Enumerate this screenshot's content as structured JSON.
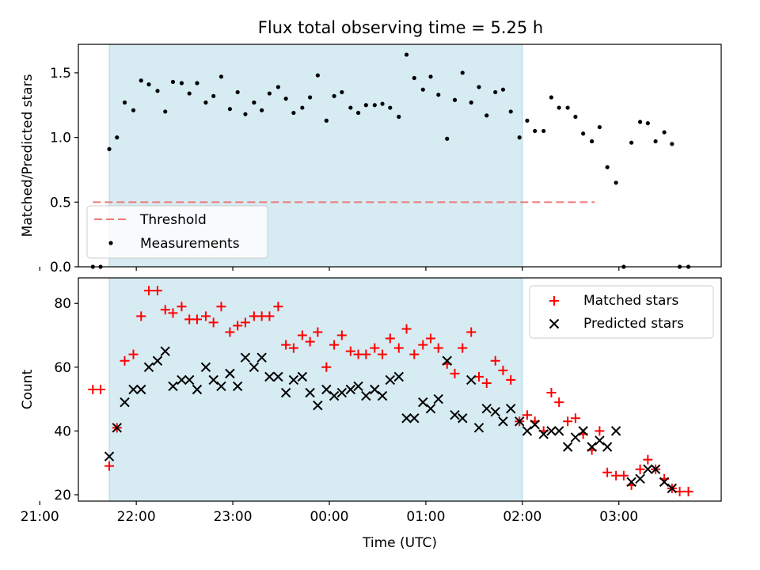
{
  "title": "Flux total observing time = 5.25 h",
  "chart_data": [
    {
      "type": "scatter",
      "ylabel": "Matched/Predicted stars",
      "ylim": [
        0,
        1.72
      ],
      "yticks": [
        "0.0",
        "0.5",
        "1.0",
        "1.5"
      ],
      "xlim": [
        -2.6,
        4.06
      ],
      "shaded_interval": [
        -2.28,
        2.0
      ],
      "legend": {
        "position": "lower-left",
        "entries": [
          "Threshold",
          "Measurements"
        ]
      },
      "threshold": {
        "name": "Threshold",
        "value": 0.5,
        "x": [
          -2.45,
          2.75
        ],
        "color": "#f07878"
      },
      "series": [
        {
          "name": "Measurements",
          "marker": "dot",
          "color": "#000000",
          "points": [
            [
              -2.45,
              0.0
            ],
            [
              -2.37,
              0.0
            ],
            [
              -2.28,
              0.91
            ],
            [
              -2.2,
              1.0
            ],
            [
              -2.12,
              1.27
            ],
            [
              -2.03,
              1.21
            ],
            [
              -1.95,
              1.44
            ],
            [
              -1.87,
              1.41
            ],
            [
              -1.78,
              1.36
            ],
            [
              -1.7,
              1.2
            ],
            [
              -1.62,
              1.43
            ],
            [
              -1.53,
              1.42
            ],
            [
              -1.45,
              1.34
            ],
            [
              -1.37,
              1.42
            ],
            [
              -1.28,
              1.27
            ],
            [
              -1.2,
              1.32
            ],
            [
              -1.12,
              1.47
            ],
            [
              -1.03,
              1.22
            ],
            [
              -0.95,
              1.35
            ],
            [
              -0.87,
              1.18
            ],
            [
              -0.78,
              1.27
            ],
            [
              -0.7,
              1.21
            ],
            [
              -0.62,
              1.34
            ],
            [
              -0.53,
              1.39
            ],
            [
              -0.45,
              1.3
            ],
            [
              -0.37,
              1.19
            ],
            [
              -0.28,
              1.23
            ],
            [
              -0.2,
              1.31
            ],
            [
              -0.12,
              1.48
            ],
            [
              -0.03,
              1.13
            ],
            [
              0.05,
              1.32
            ],
            [
              0.13,
              1.35
            ],
            [
              0.22,
              1.23
            ],
            [
              0.3,
              1.19
            ],
            [
              0.38,
              1.25
            ],
            [
              0.47,
              1.25
            ],
            [
              0.55,
              1.26
            ],
            [
              0.63,
              1.23
            ],
            [
              0.72,
              1.16
            ],
            [
              0.8,
              1.64
            ],
            [
              0.88,
              1.46
            ],
            [
              0.97,
              1.37
            ],
            [
              1.05,
              1.47
            ],
            [
              1.13,
              1.33
            ],
            [
              1.22,
              0.99
            ],
            [
              1.3,
              1.29
            ],
            [
              1.38,
              1.5
            ],
            [
              1.47,
              1.27
            ],
            [
              1.55,
              1.39
            ],
            [
              1.63,
              1.17
            ],
            [
              1.72,
              1.35
            ],
            [
              1.8,
              1.37
            ],
            [
              1.88,
              1.2
            ],
            [
              1.97,
              1.0
            ],
            [
              2.05,
              1.13
            ],
            [
              2.13,
              1.05
            ],
            [
              2.22,
              1.05
            ],
            [
              2.3,
              1.31
            ],
            [
              2.38,
              1.23
            ],
            [
              2.47,
              1.23
            ],
            [
              2.55,
              1.16
            ],
            [
              2.63,
              1.03
            ],
            [
              2.72,
              0.97
            ],
            [
              2.8,
              1.08
            ],
            [
              2.88,
              0.77
            ],
            [
              2.97,
              0.65
            ],
            [
              3.05,
              0.0
            ],
            [
              3.13,
              0.96
            ],
            [
              3.22,
              1.12
            ],
            [
              3.3,
              1.11
            ],
            [
              3.38,
              0.97
            ],
            [
              3.47,
              1.04
            ],
            [
              3.55,
              0.95
            ],
            [
              3.63,
              0.0
            ],
            [
              3.72,
              0.0
            ]
          ]
        }
      ]
    },
    {
      "type": "scatter",
      "ylabel": "Count",
      "xlabel": "Time (UTC)",
      "ylim": [
        18,
        88
      ],
      "yticks": [
        "20",
        "40",
        "60",
        "80"
      ],
      "xlim": [
        -2.6,
        4.06
      ],
      "xticks": [
        "21:00",
        "22:00",
        "23:00",
        "00:00",
        "01:00",
        "02:00",
        "03:00"
      ],
      "shaded_interval": [
        -2.28,
        2.0
      ],
      "legend": {
        "position": "top-right",
        "entries": [
          "Matched stars",
          "Predicted stars"
        ]
      },
      "series": [
        {
          "name": "Matched stars",
          "marker": "plus",
          "color": "#ff0000",
          "points": [
            [
              -2.45,
              53
            ],
            [
              -2.37,
              53
            ],
            [
              -2.28,
              29
            ],
            [
              -2.2,
              41
            ],
            [
              -2.12,
              62
            ],
            [
              -2.03,
              64
            ],
            [
              -1.95,
              76
            ],
            [
              -1.87,
              84
            ],
            [
              -1.78,
              84
            ],
            [
              -1.7,
              78
            ],
            [
              -1.62,
              77
            ],
            [
              -1.53,
              79
            ],
            [
              -1.45,
              75
            ],
            [
              -1.37,
              75
            ],
            [
              -1.28,
              76
            ],
            [
              -1.2,
              74
            ],
            [
              -1.12,
              79
            ],
            [
              -1.03,
              71
            ],
            [
              -0.95,
              73
            ],
            [
              -0.87,
              74
            ],
            [
              -0.78,
              76
            ],
            [
              -0.7,
              76
            ],
            [
              -0.62,
              76
            ],
            [
              -0.53,
              79
            ],
            [
              -0.45,
              67
            ],
            [
              -0.37,
              66
            ],
            [
              -0.28,
              70
            ],
            [
              -0.2,
              68
            ],
            [
              -0.12,
              71
            ],
            [
              -0.03,
              60
            ],
            [
              0.05,
              67
            ],
            [
              0.13,
              70
            ],
            [
              0.22,
              65
            ],
            [
              0.3,
              64
            ],
            [
              0.38,
              64
            ],
            [
              0.47,
              66
            ],
            [
              0.55,
              64
            ],
            [
              0.63,
              69
            ],
            [
              0.72,
              66
            ],
            [
              0.8,
              72
            ],
            [
              0.88,
              64
            ],
            [
              0.97,
              67
            ],
            [
              1.05,
              69
            ],
            [
              1.13,
              66
            ],
            [
              1.22,
              61
            ],
            [
              1.3,
              58
            ],
            [
              1.38,
              66
            ],
            [
              1.47,
              71
            ],
            [
              1.55,
              57
            ],
            [
              1.63,
              55
            ],
            [
              1.72,
              62
            ],
            [
              1.8,
              59
            ],
            [
              1.88,
              56
            ],
            [
              1.97,
              43
            ],
            [
              2.05,
              45
            ],
            [
              2.13,
              43
            ],
            [
              2.22,
              40
            ],
            [
              2.3,
              52
            ],
            [
              2.38,
              49
            ],
            [
              2.47,
              43
            ],
            [
              2.55,
              44
            ],
            [
              2.63,
              39
            ],
            [
              2.72,
              34
            ],
            [
              2.8,
              40
            ],
            [
              2.88,
              27
            ],
            [
              2.97,
              26
            ],
            [
              3.05,
              26
            ],
            [
              3.13,
              23
            ],
            [
              3.22,
              28
            ],
            [
              3.3,
              31
            ],
            [
              3.38,
              28
            ],
            [
              3.47,
              25
            ],
            [
              3.55,
              22
            ],
            [
              3.63,
              21
            ],
            [
              3.72,
              21
            ]
          ]
        },
        {
          "name": "Predicted stars",
          "marker": "x",
          "color": "#000000",
          "points": [
            [
              -2.28,
              32
            ],
            [
              -2.2,
              41
            ],
            [
              -2.12,
              49
            ],
            [
              -2.03,
              53
            ],
            [
              -1.95,
              53
            ],
            [
              -1.87,
              60
            ],
            [
              -1.78,
              62
            ],
            [
              -1.7,
              65
            ],
            [
              -1.62,
              54
            ],
            [
              -1.53,
              56
            ],
            [
              -1.45,
              56
            ],
            [
              -1.37,
              53
            ],
            [
              -1.28,
              60
            ],
            [
              -1.2,
              56
            ],
            [
              -1.12,
              54
            ],
            [
              -1.03,
              58
            ],
            [
              -0.95,
              54
            ],
            [
              -0.87,
              63
            ],
            [
              -0.78,
              60
            ],
            [
              -0.7,
              63
            ],
            [
              -0.62,
              57
            ],
            [
              -0.53,
              57
            ],
            [
              -0.45,
              52
            ],
            [
              -0.37,
              56
            ],
            [
              -0.28,
              57
            ],
            [
              -0.2,
              52
            ],
            [
              -0.12,
              48
            ],
            [
              -0.03,
              53
            ],
            [
              0.05,
              51
            ],
            [
              0.13,
              52
            ],
            [
              0.22,
              53
            ],
            [
              0.3,
              54
            ],
            [
              0.38,
              51
            ],
            [
              0.47,
              53
            ],
            [
              0.55,
              51
            ],
            [
              0.63,
              56
            ],
            [
              0.72,
              57
            ],
            [
              0.8,
              44
            ],
            [
              0.88,
              44
            ],
            [
              0.97,
              49
            ],
            [
              1.05,
              47
            ],
            [
              1.13,
              50
            ],
            [
              1.22,
              62
            ],
            [
              1.3,
              45
            ],
            [
              1.38,
              44
            ],
            [
              1.47,
              56
            ],
            [
              1.55,
              41
            ],
            [
              1.63,
              47
            ],
            [
              1.72,
              46
            ],
            [
              1.8,
              43
            ],
            [
              1.88,
              47
            ],
            [
              1.97,
              43
            ],
            [
              2.05,
              40
            ],
            [
              2.13,
              42
            ],
            [
              2.22,
              39
            ],
            [
              2.3,
              40
            ],
            [
              2.38,
              40
            ],
            [
              2.47,
              35
            ],
            [
              2.55,
              38
            ],
            [
              2.63,
              40
            ],
            [
              2.72,
              35
            ],
            [
              2.8,
              37
            ],
            [
              2.88,
              35
            ],
            [
              2.97,
              40
            ],
            [
              3.13,
              24
            ],
            [
              3.22,
              25
            ],
            [
              3.3,
              28
            ],
            [
              3.38,
              28
            ],
            [
              3.47,
              24
            ],
            [
              3.55,
              22
            ]
          ]
        }
      ]
    }
  ]
}
